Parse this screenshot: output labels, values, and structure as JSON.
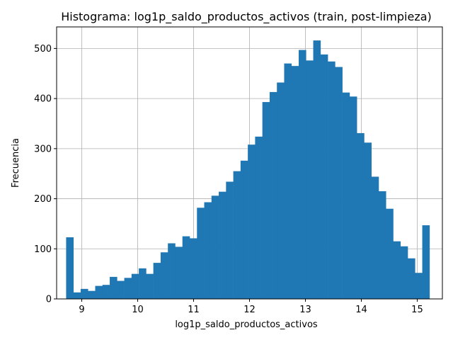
{
  "chart_data": {
    "type": "bar",
    "title": "Histograma: log1p_saldo_productos_activos (train, post-limpieza)",
    "xlabel": "log1p_saldo_productos_activos",
    "ylabel": "Frecuencia",
    "xlim": [
      8.55,
      15.45
    ],
    "ylim": [
      0,
      543
    ],
    "xticks": [
      9,
      10,
      11,
      12,
      13,
      14,
      15
    ],
    "yticks": [
      0,
      100,
      200,
      300,
      400,
      500
    ],
    "grid": true,
    "bar_color": "#1f77b4",
    "bins": {
      "start": 8.72,
      "width": 0.13,
      "counts": [
        123,
        13,
        20,
        16,
        26,
        28,
        44,
        36,
        42,
        50,
        61,
        50,
        72,
        93,
        111,
        104,
        125,
        121,
        182,
        193,
        206,
        214,
        234,
        255,
        276,
        308,
        324,
        393,
        413,
        432,
        470,
        465,
        497,
        476,
        516,
        488,
        474,
        463,
        412,
        404,
        331,
        312,
        244,
        215,
        180,
        115,
        105,
        81,
        52,
        147
      ]
    }
  }
}
